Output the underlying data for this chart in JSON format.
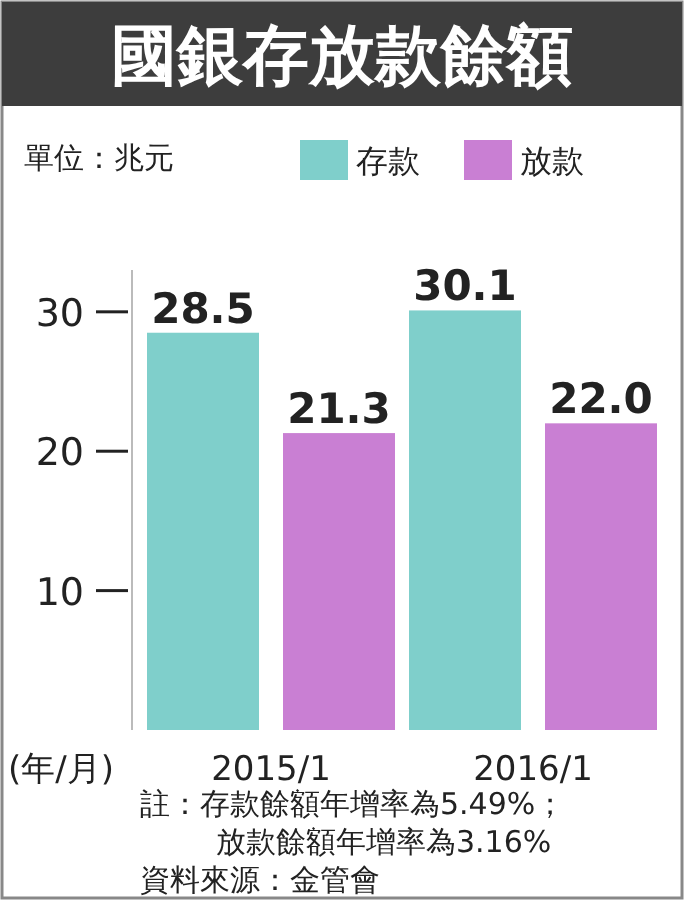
{
  "chart_data": {
    "type": "bar",
    "title": "國銀存放款餘額",
    "ylabel": "單位：兆元",
    "xlabel": "(年/月)",
    "categories": [
      "2015/1",
      "2016/1"
    ],
    "series": [
      {
        "name": "存款",
        "color": "#7fcfcb",
        "values": [
          28.5,
          30.1
        ],
        "value_labels": [
          "28.5",
          "30.1"
        ]
      },
      {
        "name": "放款",
        "color": "#c97fd3",
        "values": [
          21.3,
          22.0
        ],
        "value_labels": [
          "21.3",
          "22.0"
        ]
      }
    ],
    "ylim": [
      0,
      33
    ],
    "yticks": [
      10,
      20,
      30
    ],
    "legend": "top right",
    "grid": false,
    "annotations": [
      "註：存款餘額年增率為5.49%；",
      "放款餘額年增率為3.16%",
      "資料來源：金管會"
    ]
  }
}
